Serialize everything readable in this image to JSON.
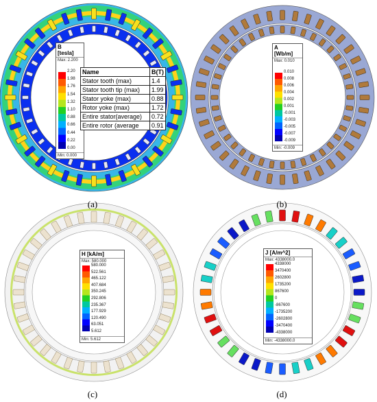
{
  "panels": [
    {
      "id": "a",
      "caption": "(a)",
      "legend": {
        "title_line1": "B",
        "title_line2": "[tesla]",
        "max": "Max: 2.200",
        "min": "Min: 0.000",
        "ticks": [
          "2.20",
          "1.98",
          "1.76",
          "1.54",
          "1.32",
          "1.10",
          "0.88",
          "0.66",
          "0.44",
          "0.22",
          "0.00"
        ]
      }
    },
    {
      "id": "b",
      "caption": "(b)",
      "legend": {
        "title_line1": "A",
        "title_line2": "[Wb/m]",
        "max": "Max: 0.010",
        "min": "Min: -0.009",
        "ticks": [
          "0.010",
          "0.008",
          "0.006",
          "0.004",
          "0.002",
          "0.001",
          "-0.001",
          "-0.003",
          "-0.005",
          "-0.007",
          "-0.009"
        ]
      }
    },
    {
      "id": "c",
      "caption": "(c)",
      "legend": {
        "title_line1": "H [kA/m]",
        "title_line2": "",
        "max": "Max: 580.000",
        "min": "Min: 5.612",
        "ticks": [
          "580.000",
          "522.561",
          "465.122",
          "407.684",
          "350.245",
          "292.806",
          "235.367",
          "177.929",
          "120.490",
          "63.051",
          "5.612"
        ]
      }
    },
    {
      "id": "d",
      "caption": "(d)",
      "legend": {
        "title_line1": "J [A/m^2]",
        "title_line2": "",
        "max": "Max: 4338000.0",
        "min": "Min: -4338000.0",
        "ticks": [
          "4338000",
          "3470400",
          "2602800",
          "1735200",
          "867600",
          "0",
          "-867600",
          "-1735200",
          "-2602800",
          "-3470400",
          "-4338000"
        ]
      }
    }
  ],
  "table": {
    "headers": [
      "Name",
      "B(T)"
    ],
    "rows": [
      [
        "Stator tooth (max)",
        "1.4"
      ],
      [
        "Stator tooth tip (max)",
        "1.99"
      ],
      [
        "Stator yoke (max)",
        "0.88"
      ],
      [
        "Rotor yoke (max)",
        "1.72"
      ],
      [
        "Entire stator(average)",
        "0.72"
      ],
      [
        "Entire rotor (average",
        "0.91"
      ]
    ]
  },
  "colors": {
    "scale": [
      "#ff0000",
      "#ff5a00",
      "#ffa500",
      "#ffe000",
      "#b5e61d",
      "#22d022",
      "#00c8a0",
      "#00b0ff",
      "#0064ff",
      "#0000ff",
      "#0000b0"
    ],
    "field_blue": "#0a2ff0",
    "field_lightblue": "#38b6e8",
    "field_green": "#34d27a",
    "a_ring": "#9aa8d4",
    "c_ring": "#f2f2f2",
    "d_ring": "#f8f8f8",
    "copper_a": "#b07a3c"
  }
}
